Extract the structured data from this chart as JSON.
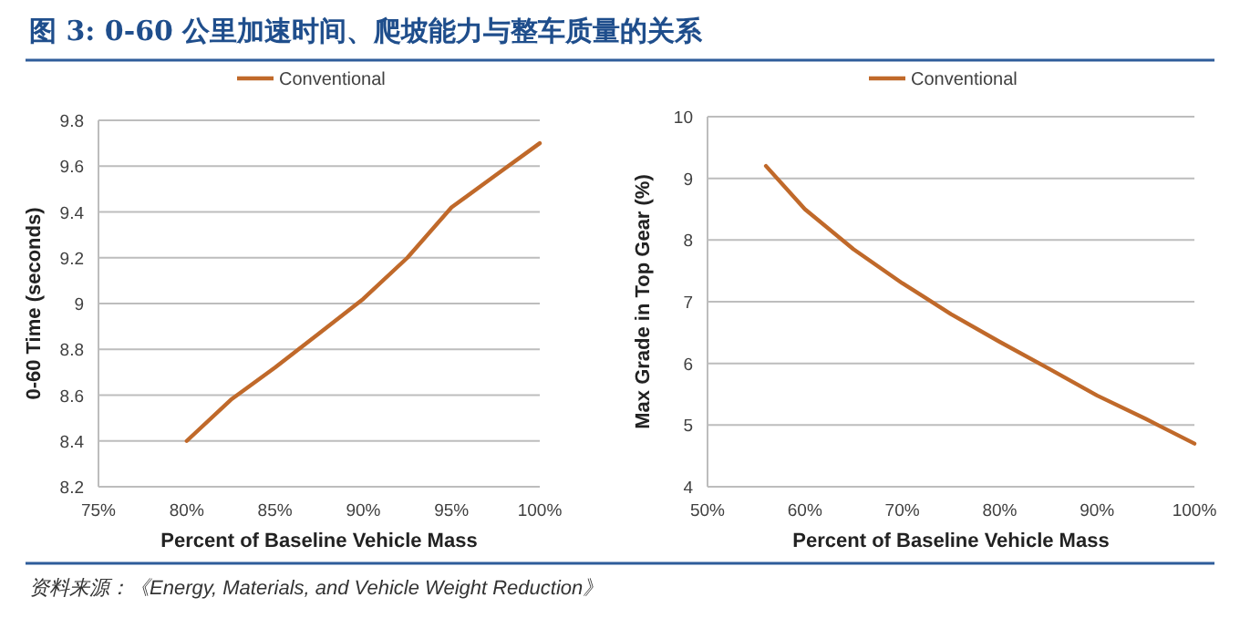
{
  "chart_data": [
    {
      "type": "line",
      "title": "图 3: 0-60 公里加速时间、爬坡能力与整车质量的关系",
      "xlabel": "Percent of Baseline Vehicle Mass",
      "ylabel": "0-60 Time (seconds)",
      "series": [
        {
          "name": "Conventional",
          "color": "#c0692a",
          "x": [
            80,
            82.5,
            85,
            87.5,
            90,
            92.5,
            95,
            97.5,
            100
          ],
          "values": [
            8.4,
            8.58,
            8.72,
            8.87,
            9.02,
            9.2,
            9.42,
            9.56,
            9.7
          ]
        }
      ],
      "xlim": [
        75,
        100
      ],
      "xticks": [
        {
          "value": 75,
          "label": "75%"
        },
        {
          "value": 80,
          "label": "80%"
        },
        {
          "value": 85,
          "label": "85%"
        },
        {
          "value": 90,
          "label": "90%"
        },
        {
          "value": 95,
          "label": "95%"
        },
        {
          "value": 100,
          "label": "100%"
        }
      ],
      "ylim": [
        8.2,
        9.8
      ],
      "yticks": [
        8.2,
        8.4,
        8.6,
        8.8,
        9,
        9.2,
        9.4,
        9.6,
        9.8
      ],
      "grid": "y",
      "legend": "top",
      "marker": "none",
      "line_style": "solid",
      "annotations": [
        "资料来源：《Energy, Materials, and Vehicle Weight Reduction》"
      ]
    },
    {
      "type": "line",
      "xlabel": "Percent of Baseline Vehicle Mass",
      "ylabel": "Max Grade in Top Gear (%)",
      "series": [
        {
          "name": "Conventional",
          "color": "#c0692a",
          "x": [
            56,
            60,
            65,
            70,
            75,
            80,
            85,
            90,
            95,
            100
          ],
          "values": [
            9.2,
            8.5,
            7.85,
            7.3,
            6.8,
            6.35,
            5.92,
            5.48,
            5.1,
            4.7
          ]
        }
      ],
      "xlim": [
        50,
        100
      ],
      "xticks": [
        {
          "value": 50,
          "label": "50%"
        },
        {
          "value": 60,
          "label": "60%"
        },
        {
          "value": 70,
          "label": "70%"
        },
        {
          "value": 80,
          "label": "80%"
        },
        {
          "value": 90,
          "label": "90%"
        },
        {
          "value": 100,
          "label": "100%"
        }
      ],
      "ylim": [
        4,
        10
      ],
      "yticks": [
        4,
        5,
        6,
        7,
        8,
        9,
        10
      ],
      "grid": "y",
      "legend": "top",
      "marker": "none",
      "line_style": "solid"
    }
  ]
}
